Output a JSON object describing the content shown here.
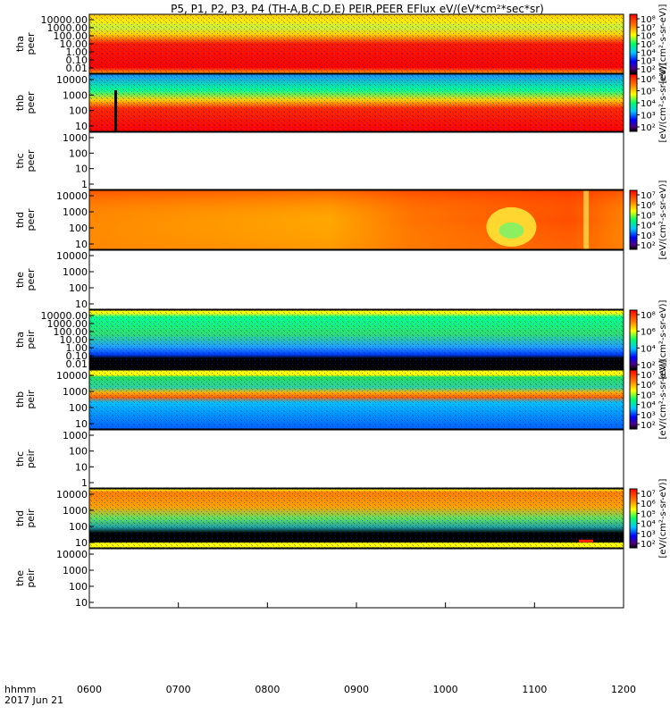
{
  "title": "P5, P1, P2, P3, P4 (TH-A,B,C,D,E) PEIR,PEER EFlux eV/(eV*cm²*sec*sr)",
  "footer": {
    "hhmm_label": "hhmm",
    "date_label": "2017 Jun 21"
  },
  "chart_data": {
    "type": "heatmap",
    "x_axis": {
      "range": [
        "0600",
        "1200"
      ],
      "ticks": [
        "0600",
        "0700",
        "0800",
        "0900",
        "1000",
        "1100",
        "1200"
      ]
    },
    "panels": [
      {
        "id": "tha-peer",
        "label_top": "tha",
        "label_bottom": "peer",
        "yticks": [
          "10000.00",
          "1000.00",
          "100.00",
          "10.00",
          "1.00",
          "0.10",
          "0.01"
        ],
        "colorbar": true,
        "colorbar_label": "[eV/(cm²-s-sr-eV)]",
        "cb_ticks": [
          "10⁸",
          "10⁷",
          "10⁶",
          "10⁵",
          "10⁴",
          "10³",
          "10²"
        ],
        "has_data": true,
        "style": "tha-peer"
      },
      {
        "id": "thb-peer",
        "label_top": "thb",
        "label_bottom": "peer",
        "yticks": [
          "10000",
          "1000",
          "100",
          "10"
        ],
        "colorbar": true,
        "colorbar_label": "[eV/(cm²-s-sr-eV)]",
        "cb_ticks": [
          "10⁶",
          "10⁵",
          "10⁴",
          "10³",
          "10²"
        ],
        "has_data": true,
        "style": "thb-peer"
      },
      {
        "id": "thc-peer",
        "label_top": "thc",
        "label_bottom": "peer",
        "yticks": [
          "1000",
          "100",
          "10",
          "1"
        ],
        "colorbar": false,
        "has_data": false
      },
      {
        "id": "thd-peer",
        "label_top": "thd",
        "label_bottom": "peer",
        "yticks": [
          "10000",
          "1000",
          "100",
          "10"
        ],
        "colorbar": true,
        "colorbar_label": "[eV/(cm²-s-sr-eV)]",
        "cb_ticks": [
          "10⁷",
          "10⁶",
          "10⁵",
          "10⁴",
          "10³",
          "10²"
        ],
        "has_data": true,
        "style": "thd-peer"
      },
      {
        "id": "the-peer",
        "label_top": "the",
        "label_bottom": "peer",
        "yticks": [
          "10000",
          "1000",
          "100",
          "10"
        ],
        "colorbar": false,
        "has_data": false
      },
      {
        "id": "tha-peir",
        "label_top": "tha",
        "label_bottom": "peir",
        "yticks": [
          "10000.00",
          "1000.00",
          "100.00",
          "10.00",
          "1.00",
          "0.10",
          "0.01"
        ],
        "colorbar": true,
        "colorbar_label": "[eV/(cm²-s-sr-eV)]",
        "cb_ticks": [
          "10⁸",
          "10⁶",
          "10⁴",
          "10²"
        ],
        "has_data": true,
        "style": "tha-peir"
      },
      {
        "id": "thb-peir",
        "label_top": "thb",
        "label_bottom": "peir",
        "yticks": [
          "10000",
          "1000",
          "100",
          "10"
        ],
        "colorbar": true,
        "colorbar_label": "[eV/(cm²-s-sr-eV)]",
        "cb_ticks": [
          "10⁷",
          "10⁶",
          "10⁵",
          "10⁴",
          "10³",
          "10²"
        ],
        "has_data": true,
        "style": "thb-peir"
      },
      {
        "id": "thc-peir",
        "label_top": "thc",
        "label_bottom": "peir",
        "yticks": [
          "1000",
          "100",
          "10",
          "1"
        ],
        "colorbar": false,
        "has_data": false
      },
      {
        "id": "thd-peir",
        "label_top": "thd",
        "label_bottom": "peir",
        "yticks": [
          "10000",
          "1000",
          "100",
          "10"
        ],
        "colorbar": true,
        "colorbar_label": "[eV/(cm²-s-sr-eV)]",
        "cb_ticks": [
          "10⁷",
          "10⁶",
          "10⁵",
          "10⁴",
          "10³",
          "10²"
        ],
        "has_data": true,
        "style": "thd-peir"
      },
      {
        "id": "the-peir",
        "label_top": "the",
        "label_bottom": "peir",
        "yticks": [
          "10000",
          "1000",
          "100",
          "10"
        ],
        "colorbar": false,
        "has_data": false
      }
    ]
  }
}
